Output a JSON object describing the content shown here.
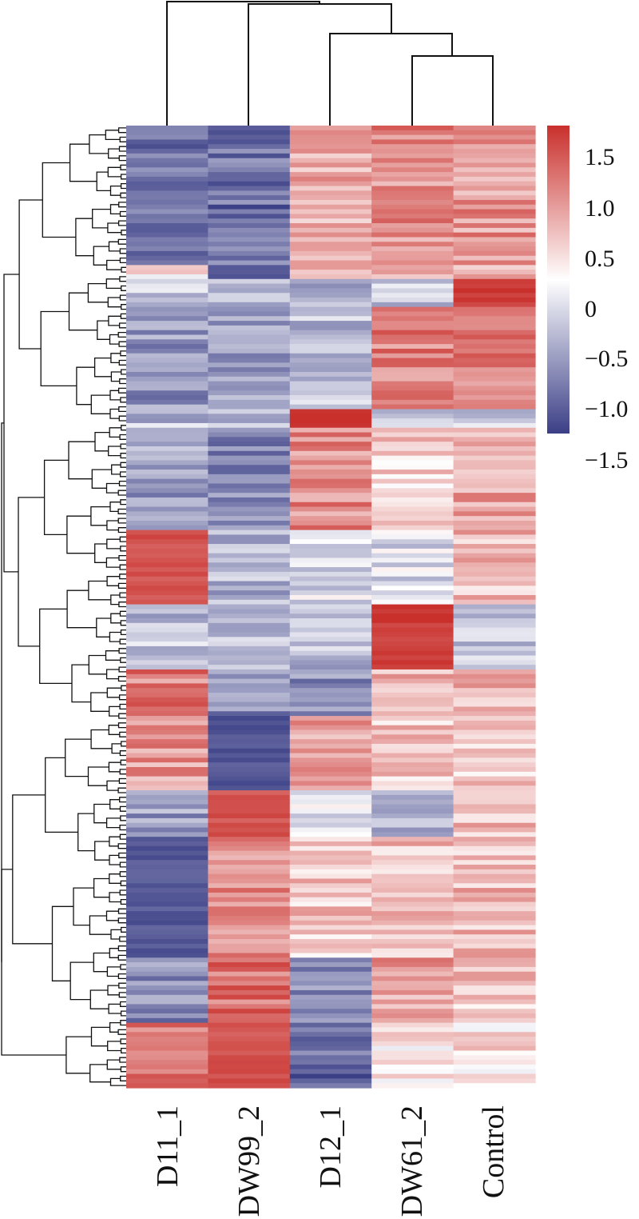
{
  "chart_data": {
    "type": "heatmap",
    "title": "",
    "xlabel": "",
    "ylabel": "",
    "columns": [
      "D11_1",
      "DW99_2",
      "D12_1",
      "DW61_2",
      "Control"
    ],
    "column_dendrogram_order": [
      "D11_1",
      "DW99_2",
      "D12_1",
      "DW61_2",
      "Control"
    ],
    "row_dendrogram": true,
    "value_range": [
      -1.8,
      1.8
    ],
    "colorbar": {
      "ticks": [
        1.5,
        1.0,
        0.5,
        0,
        -0.5,
        -1.0,
        -1.5
      ],
      "tick_labels": [
        "1.5",
        "1.0",
        "0.5",
        "0",
        "−0.5",
        "−1.0",
        "−1.5"
      ],
      "low_color": "#3b3f86",
      "mid_color": "#ffffff",
      "high_color": "#c9302c",
      "placement": "right"
    },
    "row_blocks": [
      {
        "rows": 30,
        "values": [
          -1.3,
          -1.35,
          0.7,
          1.0,
          0.9
        ]
      },
      {
        "rows": 3,
        "values": [
          0.2,
          -1.5,
          0.9,
          0.8,
          0.7
        ]
      },
      {
        "rows": 6,
        "values": [
          -0.6,
          -0.6,
          -0.7,
          -0.5,
          1.7
        ]
      },
      {
        "rows": 22,
        "values": [
          -1.0,
          -1.0,
          -0.6,
          1.1,
          1.1
        ]
      },
      {
        "rows": 4,
        "values": [
          -0.6,
          -0.6,
          1.7,
          -0.6,
          -0.6
        ]
      },
      {
        "rows": 22,
        "values": [
          -0.9,
          -1.1,
          1.0,
          0.4,
          0.8
        ]
      },
      {
        "rows": 16,
        "values": [
          1.5,
          -0.7,
          -0.3,
          -0.3,
          0.6
        ]
      },
      {
        "rows": 14,
        "values": [
          -0.6,
          -0.6,
          -0.6,
          1.7,
          -0.6
        ]
      },
      {
        "rows": 10,
        "values": [
          1.1,
          -1.1,
          -1.1,
          0.6,
          0.6
        ]
      },
      {
        "rows": 16,
        "values": [
          0.9,
          -1.6,
          0.8,
          0.5,
          0.5
        ]
      },
      {
        "rows": 10,
        "values": [
          -0.9,
          1.5,
          -0.2,
          -0.6,
          0.6
        ]
      },
      {
        "rows": 26,
        "values": [
          -1.55,
          1.0,
          0.5,
          0.6,
          0.6
        ]
      },
      {
        "rows": 14,
        "values": [
          -1.1,
          1.2,
          -1.0,
          0.8,
          0.5
        ]
      },
      {
        "rows": 14,
        "values": [
          1.1,
          1.5,
          -1.4,
          0.2,
          0.3
        ]
      }
    ]
  }
}
